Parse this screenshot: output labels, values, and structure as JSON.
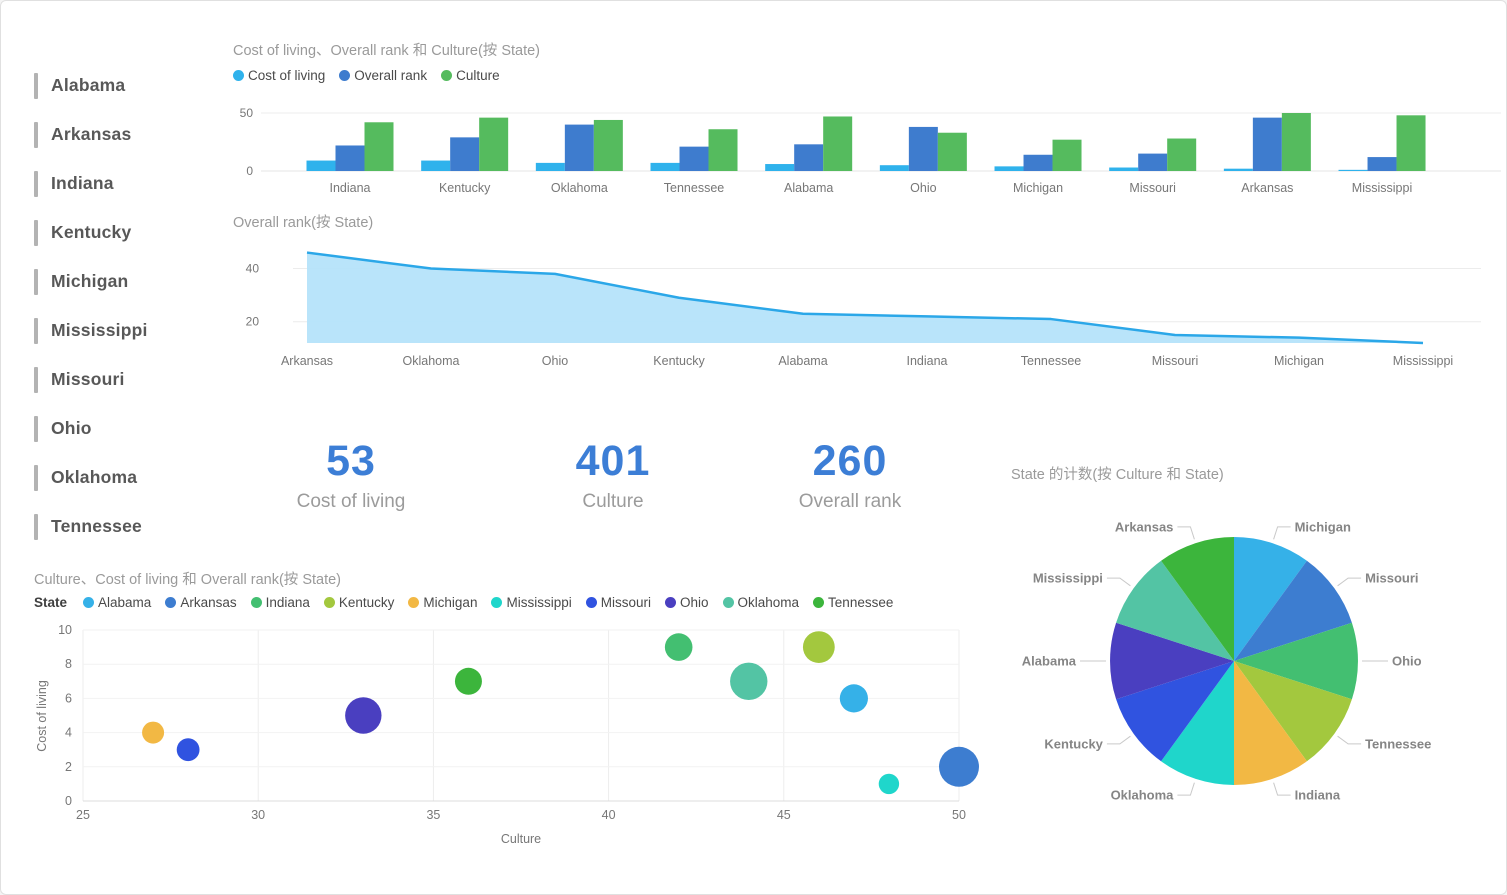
{
  "slicer": {
    "items": [
      "Alabama",
      "Arkansas",
      "Indiana",
      "Kentucky",
      "Michigan",
      "Mississippi",
      "Missouri",
      "Ohio",
      "Oklahoma",
      "Tennessee"
    ]
  },
  "kpis": [
    {
      "value": "53",
      "label": "Cost of living"
    },
    {
      "value": "401",
      "label": "Culture"
    },
    {
      "value": "260",
      "label": "Overall rank"
    }
  ],
  "colors": {
    "kpi_value": "#3c7ed6",
    "slicer_bar": "#b3b3b3",
    "axis_text": "#777777",
    "title_text": "#9a9a9a",
    "gridline": "#ececec",
    "area_fill": "#b5e3fa",
    "area_line": "#2ba7e8"
  },
  "chart_data": [
    {
      "id": "clustered-bar",
      "type": "bar",
      "title": "Cost of living、Overall rank 和 Culture(按 State)",
      "categories": [
        "Indiana",
        "Kentucky",
        "Oklahoma",
        "Tennessee",
        "Alabama",
        "Ohio",
        "Michigan",
        "Missouri",
        "Arkansas",
        "Mississippi"
      ],
      "series": [
        {
          "name": "Cost of living",
          "color": "#2fb2ec",
          "values": [
            9,
            9,
            7,
            7,
            6,
            5,
            4,
            3,
            2,
            1
          ]
        },
        {
          "name": "Overall rank",
          "color": "#3e7cce",
          "values": [
            22,
            29,
            40,
            21,
            23,
            38,
            14,
            15,
            46,
            12
          ]
        },
        {
          "name": "Culture",
          "color": "#55bb5e",
          "values": [
            42,
            46,
            44,
            36,
            47,
            33,
            27,
            28,
            50,
            48
          ]
        }
      ],
      "ylim": [
        0,
        50
      ],
      "yticks": [
        0,
        50
      ],
      "grid": "horizontal",
      "legend_position": "top"
    },
    {
      "id": "area-overall-rank",
      "type": "area",
      "title": "Overall rank(按 State)",
      "categories": [
        "Arkansas",
        "Oklahoma",
        "Ohio",
        "Kentucky",
        "Alabama",
        "Indiana",
        "Tennessee",
        "Missouri",
        "Michigan",
        "Mississippi"
      ],
      "values": [
        46,
        40,
        38,
        29,
        23,
        22,
        21,
        15,
        14,
        12
      ],
      "yticks": [
        20,
        40
      ],
      "ylim": [
        12,
        47
      ],
      "line_color": "#2ba7e8",
      "fill_color": "#b5e3fa",
      "grid": "horizontal"
    },
    {
      "id": "scatter-culture-cost",
      "type": "scatter",
      "title": "Culture、Cost of living 和 Overall rank(按 State)",
      "legend_title": "State",
      "xlabel": "Culture",
      "ylabel": "Cost of living",
      "xlim": [
        25,
        50
      ],
      "ylim": [
        0,
        10
      ],
      "xticks": [
        25,
        30,
        35,
        40,
        45,
        50
      ],
      "yticks": [
        0,
        2,
        4,
        6,
        8,
        10
      ],
      "size_field": "Overall rank",
      "points": [
        {
          "state": "Alabama",
          "x": 47,
          "y": 6,
          "size": 23,
          "color": "#35b1e8"
        },
        {
          "state": "Arkansas",
          "x": 50,
          "y": 2,
          "size": 46,
          "color": "#3d7dd0"
        },
        {
          "state": "Indiana",
          "x": 42,
          "y": 9,
          "size": 22,
          "color": "#43bf71"
        },
        {
          "state": "Kentucky",
          "x": 46,
          "y": 9,
          "size": 29,
          "color": "#a3c83e"
        },
        {
          "state": "Michigan",
          "x": 27,
          "y": 4,
          "size": 14,
          "color": "#f2b844"
        },
        {
          "state": "Mississippi",
          "x": 48,
          "y": 1,
          "size": 12,
          "color": "#1fd6cb"
        },
        {
          "state": "Missouri",
          "x": 28,
          "y": 3,
          "size": 15,
          "color": "#3053e0"
        },
        {
          "state": "Ohio",
          "x": 33,
          "y": 5,
          "size": 38,
          "color": "#4a3fc0"
        },
        {
          "state": "Oklahoma",
          "x": 44,
          "y": 7,
          "size": 40,
          "color": "#53c4a4"
        },
        {
          "state": "Tennessee",
          "x": 36,
          "y": 7,
          "size": 21,
          "color": "#3cb53c"
        }
      ],
      "grid": "both"
    },
    {
      "id": "pie-state-count",
      "type": "pie",
      "title": "State 的计数(按 Culture 和 State)",
      "start_angle_deg": 0,
      "direction": "clockwise",
      "slices": [
        {
          "label": "Michigan",
          "value": 1,
          "color": "#35b1e8"
        },
        {
          "label": "Missouri",
          "value": 1,
          "color": "#3d7dd0"
        },
        {
          "label": "Ohio",
          "value": 1,
          "color": "#43bf71"
        },
        {
          "label": "Tennessee",
          "value": 1,
          "color": "#a3c83e"
        },
        {
          "label": "Indiana",
          "value": 1,
          "color": "#f2b844"
        },
        {
          "label": "Oklahoma",
          "value": 1,
          "color": "#1fd6cb"
        },
        {
          "label": "Kentucky",
          "value": 1,
          "color": "#3053e0"
        },
        {
          "label": "Alabama",
          "value": 1,
          "color": "#4a3fc0"
        },
        {
          "label": "Mississippi",
          "value": 1,
          "color": "#53c4a4"
        },
        {
          "label": "Arkansas",
          "value": 1,
          "color": "#3cb53c"
        }
      ]
    }
  ]
}
